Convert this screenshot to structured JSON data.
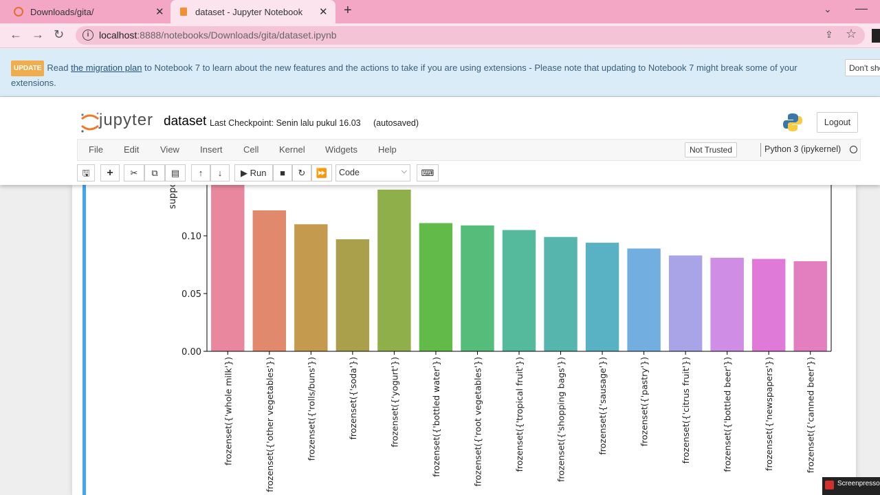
{
  "browser": {
    "tabs": [
      {
        "title": "Downloads/gita/",
        "active": false
      },
      {
        "title": "dataset - Jupyter Notebook",
        "active": true
      }
    ],
    "url_host": "localhost",
    "url_rest": ":8888/notebooks/Downloads/gita/dataset.ipynb"
  },
  "banner": {
    "badge": "UPDATE",
    "text_before": "Read ",
    "link": "the migration plan",
    "text_after": " to Notebook 7 to learn about the new features and the actions to take if you are using extensions - Please note that updating to Notebook 7 might break some of your extensions.",
    "dont_show": "Don't show"
  },
  "header": {
    "logo_text": "jupyter",
    "notebook_name": "dataset",
    "checkpoint": "Last Checkpoint: Senin lalu pukul 16.03",
    "autosave": "(autosaved)",
    "logout": "Logout"
  },
  "menu": {
    "items": [
      "File",
      "Edit",
      "View",
      "Insert",
      "Cell",
      "Kernel",
      "Widgets",
      "Help"
    ],
    "trust": "Not Trusted",
    "kernel": "Python 3 (ipykernel)"
  },
  "toolbar": {
    "run": "Run",
    "cell_type": "Code"
  },
  "watermark": "Screenpresso",
  "colors": {
    "tabbar": "#f4a7c4",
    "cell_selected": "#42a5f5"
  },
  "chart_data": {
    "type": "bar",
    "ylabel": "support",
    "yticks": [
      "0.00",
      "0.05",
      "0.10"
    ],
    "ylim_visible": [
      0,
      0.142
    ],
    "categories": [
      "frozenset({'whole milk'})",
      "frozenset({'other vegetables'})",
      "frozenset({'rolls/buns'})",
      "frozenset({'soda'})",
      "frozenset({'yogurt'})",
      "frozenset({'bottled water'})",
      "frozenset({'root vegetables'})",
      "frozenset({'tropical fruit'})",
      "frozenset({'shopping bags'})",
      "frozenset({'sausage'})",
      "frozenset({'pastry'})",
      "frozenset({'citrus fruit'})",
      "frozenset({'bottled beer'})",
      "frozenset({'newspapers'})",
      "frozenset({'canned beer'})"
    ],
    "values": [
      0.158,
      0.122,
      0.11,
      0.097,
      0.14,
      0.111,
      0.109,
      0.105,
      0.099,
      0.094,
      0.089,
      0.083,
      0.081,
      0.08,
      0.078
    ],
    "colors": [
      "#e8879e",
      "#e0896d",
      "#c49a4e",
      "#aaa04c",
      "#8faf4a",
      "#62bb48",
      "#55bc79",
      "#55ba9c",
      "#56b6ae",
      "#59b2c3",
      "#72aee0",
      "#a9a3e8",
      "#cf8de6",
      "#e07ad8",
      "#e47fbf"
    ]
  }
}
